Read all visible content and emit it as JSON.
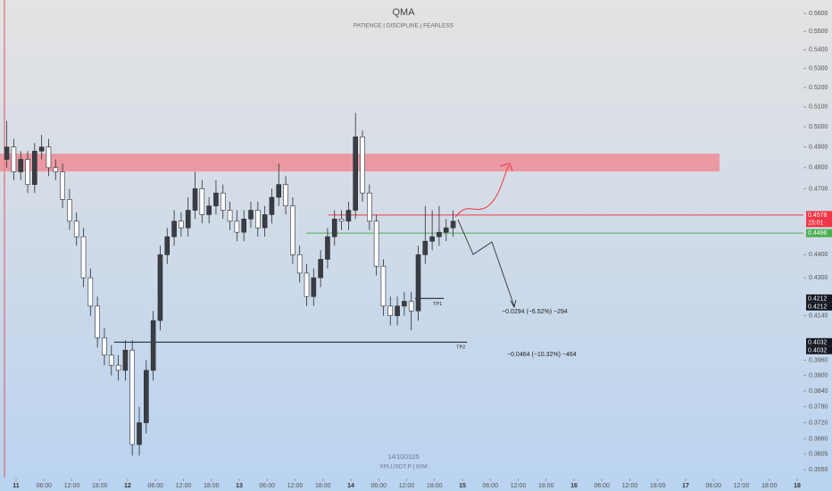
{
  "chart_data": {
    "type": "candlestick",
    "title": "QMA",
    "subtitle": "PATIENCE | DISCIPLINE | FEARLESS",
    "annotations": [
      "14/10/2025",
      "XPLUSDT.P | 60M",
      "−0.0294 (−6.52%) −294",
      "−0.0464 (−10.32%) −464"
    ],
    "log_scale": true,
    "ylim": [
      0.355,
      0.56
    ],
    "xlim": [
      -3.456,
      169.35
    ],
    "up_color": "#3a3d44",
    "down_color": "#ffffff",
    "yticks": [
      {
        "value": 0.56,
        "label": "0.5600"
      },
      {
        "value": 0.55,
        "label": "0.5500"
      },
      {
        "value": 0.54,
        "label": "0.5400"
      },
      {
        "value": 0.53,
        "label": "0.5300"
      },
      {
        "value": 0.52,
        "label": "0.5200"
      },
      {
        "value": 0.51,
        "label": "0.5100"
      },
      {
        "value": 0.5,
        "label": "0.5000"
      },
      {
        "value": 0.49,
        "label": "0.4900"
      },
      {
        "value": 0.48,
        "label": "0.4800"
      },
      {
        "value": 0.47,
        "label": "0.4700"
      },
      {
        "value": 0.44,
        "label": "0.4400"
      },
      {
        "value": 0.43,
        "label": "0.4300"
      },
      {
        "value": 0.414,
        "label": "0.4140"
      },
      {
        "value": 0.396,
        "label": "0.3960"
      },
      {
        "value": 0.39,
        "label": "0.3900"
      },
      {
        "value": 0.384,
        "label": "0.3840"
      },
      {
        "value": 0.378,
        "label": "0.3780"
      },
      {
        "value": 0.372,
        "label": "0.3720"
      },
      {
        "value": 0.366,
        "label": "0.3660"
      },
      {
        "value": 0.3605,
        "label": "0.3605"
      },
      {
        "value": 0.355,
        "label": "0.3550"
      }
    ],
    "xticks": [
      {
        "value": 0,
        "label": "11"
      },
      {
        "value": 6,
        "label": "06:00"
      },
      {
        "value": 12,
        "label": "12:00"
      },
      {
        "value": 18,
        "label": "18:00"
      },
      {
        "value": 24,
        "label": "12"
      },
      {
        "value": 30,
        "label": "06:00"
      },
      {
        "value": 36,
        "label": "12:00"
      },
      {
        "value": 42,
        "label": "18:00"
      },
      {
        "value": 48,
        "label": "13"
      },
      {
        "value": 54,
        "label": "06:00"
      },
      {
        "value": 60,
        "label": "12:00"
      },
      {
        "value": 66,
        "label": "18:00"
      },
      {
        "value": 72,
        "label": "14"
      },
      {
        "value": 78,
        "label": "06:00"
      },
      {
        "value": 84,
        "label": "12:00"
      },
      {
        "value": 90,
        "label": "18:00"
      },
      {
        "value": 96,
        "label": "15"
      },
      {
        "value": 102,
        "label": "06:00"
      },
      {
        "value": 108,
        "label": "12:00"
      },
      {
        "value": 114,
        "label": "18:00"
      },
      {
        "value": 120,
        "label": "16"
      },
      {
        "value": 126,
        "label": "06:00"
      },
      {
        "value": 132,
        "label": "12:00"
      },
      {
        "value": 138,
        "label": "18:00"
      },
      {
        "value": 144,
        "label": "17"
      },
      {
        "value": 150,
        "label": "06:00"
      },
      {
        "value": 156,
        "label": "12:00"
      },
      {
        "value": 162,
        "label": "18:00"
      },
      {
        "value": 168,
        "label": "18"
      }
    ],
    "x": [
      -2,
      -0.5,
      1,
      2.5,
      4,
      5.5,
      7,
      8.5,
      10,
      11.5,
      13,
      14.5,
      16,
      17.5,
      19,
      20.5,
      22,
      23.5,
      25,
      26.5,
      28,
      29.5,
      31,
      32.5,
      34,
      35.5,
      37,
      38.5,
      40,
      41.5,
      43,
      44.5,
      46,
      47.5,
      49,
      50.5,
      52,
      53.5,
      55,
      56.5,
      58,
      59.5,
      61,
      62.5,
      64,
      65.5,
      67,
      68.5,
      70,
      71.5,
      73,
      74.5,
      76,
      77.5,
      79,
      80.5,
      82,
      83.5,
      85,
      86.5,
      88,
      89.5,
      91,
      92.5,
      94
    ],
    "open": [
      0.484,
      0.49,
      0.478,
      0.484,
      0.472,
      0.488,
      0.49,
      0.48,
      0.478,
      0.465,
      0.455,
      0.448,
      0.43,
      0.418,
      0.405,
      0.398,
      0.394,
      0.392,
      0.4,
      0.364,
      0.372,
      0.392,
      0.412,
      0.44,
      0.448,
      0.455,
      0.452,
      0.46,
      0.47,
      0.458,
      0.462,
      0.468,
      0.46,
      0.455,
      0.45,
      0.456,
      0.46,
      0.452,
      0.458,
      0.466,
      0.472,
      0.462,
      0.44,
      0.432,
      0.422,
      0.43,
      0.438,
      0.448,
      0.456,
      0.455,
      0.46,
      0.495,
      0.468,
      0.455,
      0.435,
      0.418,
      0.414,
      0.418,
      0.42,
      0.416,
      0.44,
      0.446,
      0.448,
      0.45,
      0.452
    ],
    "high": [
      0.503,
      0.494,
      0.488,
      0.488,
      0.492,
      0.496,
      0.494,
      0.484,
      0.482,
      0.47,
      0.459,
      0.452,
      0.434,
      0.422,
      0.409,
      0.402,
      0.398,
      0.404,
      0.404,
      0.378,
      0.396,
      0.416,
      0.444,
      0.452,
      0.46,
      0.459,
      0.466,
      0.478,
      0.474,
      0.466,
      0.474,
      0.472,
      0.464,
      0.46,
      0.46,
      0.464,
      0.464,
      0.462,
      0.47,
      0.482,
      0.476,
      0.466,
      0.444,
      0.436,
      0.434,
      0.442,
      0.452,
      0.46,
      0.46,
      0.464,
      0.507,
      0.498,
      0.472,
      0.458,
      0.438,
      0.422,
      0.422,
      0.424,
      0.424,
      0.444,
      0.462,
      0.46,
      0.462,
      0.456,
      0.46
    ],
    "low": [
      0.48,
      0.474,
      0.474,
      0.468,
      0.468,
      0.484,
      0.476,
      0.474,
      0.461,
      0.451,
      0.444,
      0.426,
      0.414,
      0.401,
      0.394,
      0.39,
      0.388,
      0.388,
      0.36,
      0.36,
      0.368,
      0.388,
      0.408,
      0.436,
      0.444,
      0.448,
      0.448,
      0.456,
      0.454,
      0.454,
      0.458,
      0.456,
      0.451,
      0.446,
      0.446,
      0.452,
      0.448,
      0.448,
      0.454,
      0.462,
      0.458,
      0.436,
      0.428,
      0.418,
      0.418,
      0.426,
      0.434,
      0.444,
      0.451,
      0.451,
      0.456,
      0.464,
      0.451,
      0.431,
      0.414,
      0.41,
      0.41,
      0.414,
      0.408,
      0.412,
      0.436,
      0.442,
      0.444,
      0.446,
      0.448
    ],
    "close": [
      0.49,
      0.478,
      0.484,
      0.472,
      0.488,
      0.49,
      0.48,
      0.478,
      0.465,
      0.455,
      0.448,
      0.43,
      0.418,
      0.405,
      0.398,
      0.394,
      0.392,
      0.4,
      0.364,
      0.372,
      0.392,
      0.412,
      0.44,
      0.448,
      0.455,
      0.452,
      0.46,
      0.47,
      0.458,
      0.462,
      0.468,
      0.46,
      0.455,
      0.45,
      0.456,
      0.46,
      0.452,
      0.458,
      0.466,
      0.472,
      0.462,
      0.44,
      0.432,
      0.422,
      0.43,
      0.438,
      0.448,
      0.456,
      0.455,
      0.46,
      0.495,
      0.468,
      0.455,
      0.435,
      0.418,
      0.414,
      0.418,
      0.42,
      0.416,
      0.44,
      0.446,
      0.448,
      0.45,
      0.452,
      0.455
    ],
    "zone": {
      "values": [
        0.4782,
        0.4868
      ],
      "x": [
        -3.456,
        151.3
      ],
      "color": "#f0828c"
    },
    "levels": [
      {
        "value": 0.4578,
        "x": [
          67.2,
          169.35
        ],
        "color": "#f23645"
      },
      {
        "value": 0.4496,
        "x": [
          62.4,
          169.35
        ],
        "color": "#4caf50"
      },
      {
        "value": 0.4212,
        "x": [
          85.8,
          92
        ],
        "color": "#131722",
        "label": "TP1"
      },
      {
        "value": 0.4032,
        "x": [
          21.1,
          97
        ],
        "color": "#131722",
        "label": "TP2"
      }
    ],
    "price_tags": [
      {
        "value": 0.4578,
        "color": "#f23645",
        "extra": "15:01"
      },
      {
        "value": 0.4496,
        "color": "#4caf50"
      },
      {
        "value": 0.4212,
        "color": "#131722"
      },
      {
        "value": 0.4212,
        "color": "#131722"
      },
      {
        "value": 0.4032,
        "color": "#131722"
      },
      {
        "value": 0.4032,
        "color": "#131722"
      }
    ]
  }
}
